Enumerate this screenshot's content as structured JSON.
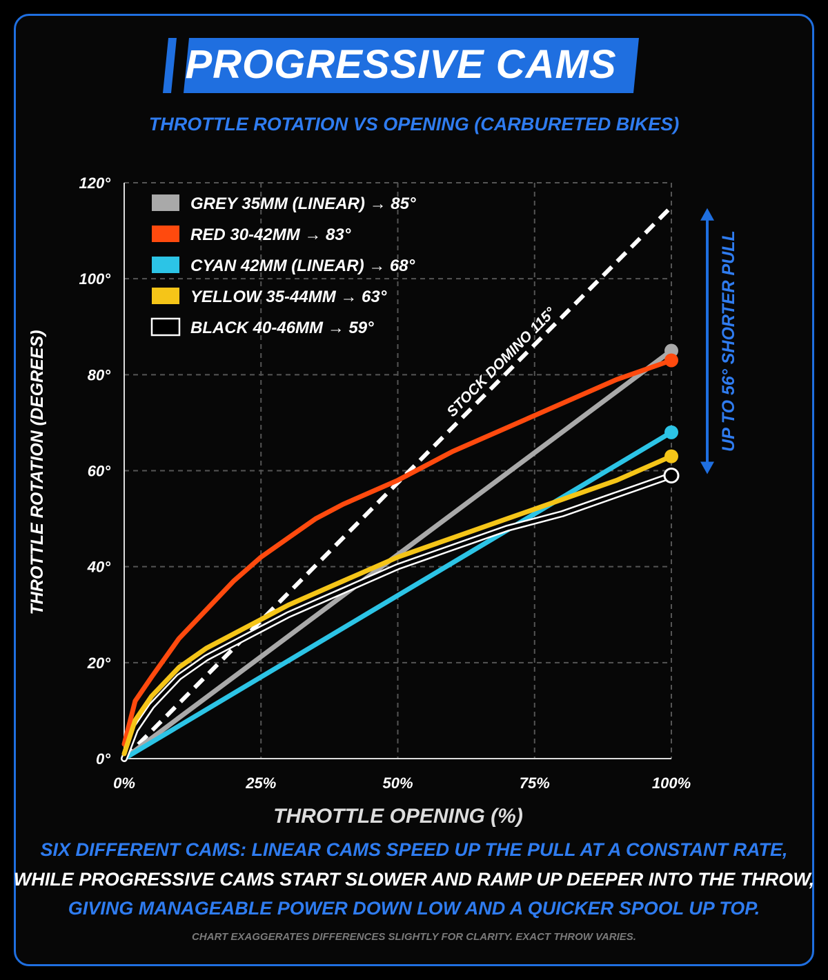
{
  "title": "PROGRESSIVE CAMS",
  "subtitle": "THROTTLE ROTATION VS OPENING (CARBURETED BIKES)",
  "captions": [
    "SIX DIFFERENT CAMS: LINEAR CAMS SPEED UP THE PULL AT A CONSTANT RATE,",
    "WHILE PROGRESSIVE CAMS START SLOWER AND RAMP UP DEEPER INTO THE THROW,",
    "GIVING MANAGEABLE POWER DOWN LOW AND A QUICKER SPOOL UP TOP."
  ],
  "footnote": "CHART EXAGGERATES DIFFERENCES SLIGHTLY FOR CLARITY. EXACT THROW VARIES.",
  "colors": {
    "accent": "#1f6fe0",
    "grey": "#a9a9a9",
    "red": "#ff4a0e",
    "cyan": "#2cc4e6",
    "yellow": "#f5c518",
    "black": "#000000",
    "stock": "#ffffff"
  },
  "chart_data": {
    "type": "line",
    "xlabel": "THROTTLE OPENING (%)",
    "ylabel": "THROTTLE ROTATION (DEGREES)",
    "xlim": [
      0,
      100
    ],
    "ylim": [
      0,
      120
    ],
    "x_ticks": [
      0,
      25,
      50,
      75,
      100
    ],
    "x_tick_labels": [
      "0%",
      "25%",
      "50%",
      "75%",
      "100%"
    ],
    "y_ticks": [
      0,
      20,
      40,
      60,
      80,
      100,
      120
    ],
    "y_tick_labels": [
      "0°",
      "20°",
      "40°",
      "60°",
      "80°",
      "100°",
      "120°"
    ],
    "grid": true,
    "legend_position": "top-left",
    "series": [
      {
        "name": "GREY 35MM (LINEAR) → 85°",
        "color": "grey",
        "end_value": 85,
        "x": [
          0,
          100
        ],
        "y": [
          0,
          85
        ]
      },
      {
        "name": "RED 30-42MM → 83°",
        "color": "red",
        "end_value": 83,
        "x": [
          0,
          2,
          5,
          10,
          15,
          20,
          25,
          30,
          35,
          40,
          50,
          60,
          70,
          80,
          90,
          100
        ],
        "y": [
          3,
          12,
          17,
          25,
          31,
          37,
          42,
          46,
          50,
          53,
          58,
          64,
          69,
          74,
          79,
          83
        ]
      },
      {
        "name": "CYAN 42MM (LINEAR) → 68°",
        "color": "cyan",
        "end_value": 68,
        "x": [
          0,
          100
        ],
        "y": [
          0,
          68
        ]
      },
      {
        "name": "YELLOW 35-44MM → 63°",
        "color": "yellow",
        "end_value": 63,
        "x": [
          0,
          2,
          5,
          10,
          15,
          20,
          25,
          30,
          40,
          50,
          60,
          70,
          80,
          90,
          100
        ],
        "y": [
          1,
          8,
          13,
          19,
          23,
          26,
          29,
          32,
          37,
          42,
          46,
          50,
          54,
          58,
          63
        ]
      },
      {
        "name": "BLACK 40-46MM → 59°",
        "color": "black",
        "end_value": 59,
        "x": [
          0,
          2,
          5,
          10,
          15,
          20,
          25,
          30,
          40,
          50,
          60,
          70,
          80,
          90,
          100
        ],
        "y": [
          0,
          6,
          11,
          17,
          21,
          24,
          27,
          30,
          35,
          40,
          44,
          48,
          51,
          55,
          59
        ]
      }
    ],
    "reference_line": {
      "label": "STOCK DOMINO 115°",
      "x": [
        0,
        100
      ],
      "y": [
        0,
        115
      ]
    },
    "annotation": {
      "text": "UP TO 56° SHORTER PULL",
      "from": 115,
      "to": 59
    }
  }
}
